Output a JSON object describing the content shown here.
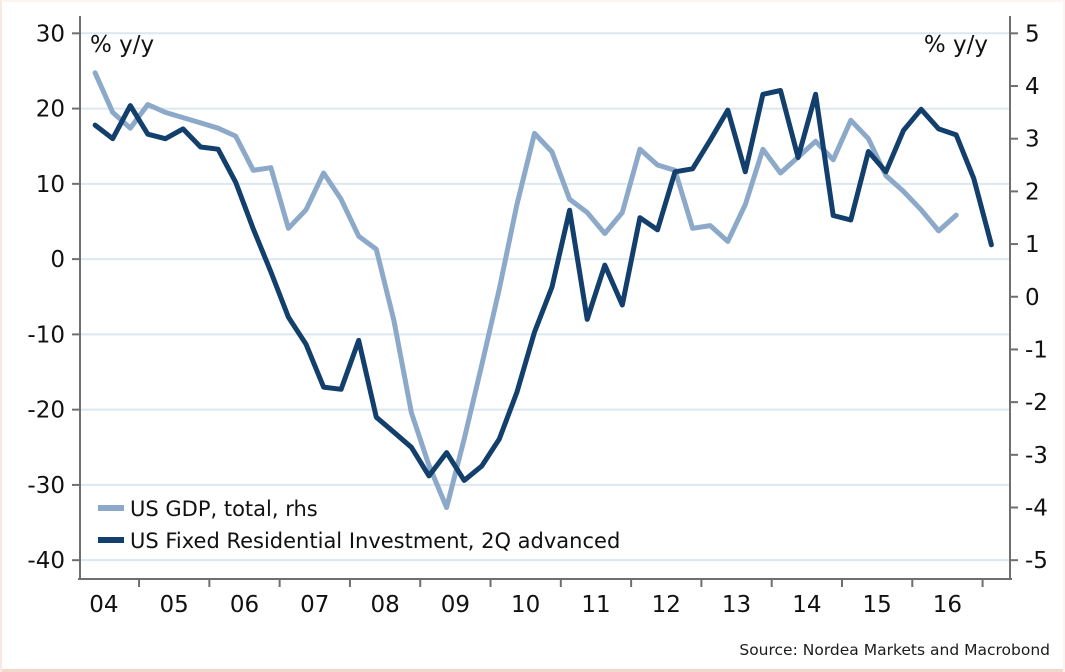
{
  "chart_data": {
    "type": "line",
    "title": "",
    "source": "Source: Nordea Markets and Macrobond",
    "grid": "horizontal-only",
    "legend_position": "inside-bottom-left",
    "colors": {
      "gdp_line": "#8ca9c9",
      "investment_line": "#123f6b",
      "gridline": "#dce7ef",
      "axis": "#6f6f6f",
      "text": "#111111",
      "background": "#ffffff",
      "bottom_edge": "#f2d7cd"
    },
    "x_axis": {
      "range": [
        2004.16,
        2017.39
      ],
      "year_boundary_ticks": [
        2005,
        2006,
        2007,
        2008,
        2009,
        2010,
        2011,
        2012,
        2013,
        2014,
        2015,
        2016,
        2017
      ],
      "labels": [
        "04",
        "05",
        "06",
        "07",
        "08",
        "09",
        "10",
        "11",
        "12",
        "13",
        "14",
        "15",
        "16"
      ],
      "label_positions": [
        2004.5,
        2005.5,
        2006.5,
        2007.5,
        2008.5,
        2009.5,
        2010.5,
        2011.5,
        2012.5,
        2013.5,
        2014.5,
        2015.5,
        2016.5
      ]
    },
    "left_axis": {
      "label": "% y/y",
      "ticks": [
        30,
        20,
        10,
        0,
        -10,
        -20,
        -30,
        -40
      ],
      "tick_labels": [
        "30",
        "20",
        "10",
        "0",
        "-10",
        "-20",
        "-30",
        "-40"
      ],
      "range": [
        -42.5,
        32.3
      ]
    },
    "right_axis": {
      "label": "% y/y",
      "ticks": [
        5,
        4,
        3,
        2,
        1,
        0,
        -1,
        -2,
        -3,
        -4,
        -5
      ],
      "tick_labels": [
        "5",
        "4",
        "3",
        "2",
        "1",
        "0",
        "-1",
        "-2",
        "-3",
        "-4",
        "-5"
      ],
      "range": [
        -5.357,
        5.329
      ]
    },
    "series": [
      {
        "name": "US GDP, total, rhs",
        "axis": "right",
        "color": "#8ca9c9",
        "start": 2004.375,
        "step": 0.25,
        "values": [
          4.25,
          3.5,
          3.2,
          3.65,
          3.5,
          3.4,
          3.3,
          3.2,
          3.05,
          2.4,
          2.45,
          1.3,
          1.65,
          2.35,
          1.85,
          1.15,
          0.9,
          -0.45,
          -2.2,
          -3.2,
          -4.0,
          -2.7,
          -1.3,
          0.15,
          1.75,
          3.1,
          2.75,
          1.85,
          1.6,
          1.2,
          1.6,
          2.8,
          2.5,
          2.4,
          1.3,
          1.35,
          1.05,
          1.75,
          2.8,
          2.35,
          2.65,
          2.95,
          2.6,
          3.35,
          3.0,
          2.3,
          2.0,
          1.65,
          1.25,
          1.55
        ]
      },
      {
        "name": "US Fixed Residential Investment, 2Q advanced",
        "axis": "left",
        "color": "#123f6b",
        "start": 2004.375,
        "step": 0.25,
        "values": [
          17.8,
          16.0,
          20.4,
          16.6,
          16.0,
          17.3,
          14.9,
          14.6,
          10.2,
          4.0,
          -1.7,
          -7.7,
          -11.3,
          -17.0,
          -17.3,
          -10.8,
          -21.0,
          -23.0,
          -25.0,
          -28.8,
          -25.7,
          -29.4,
          -27.5,
          -23.9,
          -17.7,
          -9.7,
          -3.7,
          6.5,
          -8.0,
          -0.8,
          -6.1,
          5.5,
          3.9,
          11.6,
          12.0,
          15.8,
          19.8,
          11.6,
          21.9,
          22.4,
          13.5,
          21.9,
          5.8,
          5.2,
          14.3,
          11.6,
          17.1,
          19.9,
          17.3,
          16.5,
          10.7,
          1.9
        ]
      }
    ]
  }
}
